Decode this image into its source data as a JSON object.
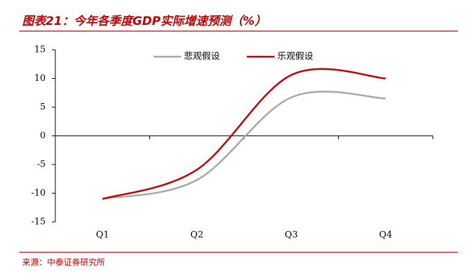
{
  "chart_data": {
    "type": "line",
    "title": "图表21：今年各季度GDP实际增速预测（%）",
    "source": "来源：中泰证券研究所",
    "categories": [
      "Q1",
      "Q2",
      "Q3",
      "Q4"
    ],
    "series": [
      {
        "name": "悲观假设",
        "color": "#a6a6a6",
        "values": [
          -11,
          -7.7,
          6.7,
          6.5
        ]
      },
      {
        "name": "乐观假设",
        "color": "#c00000",
        "values": [
          -11,
          -5.9,
          10.6,
          10
        ]
      }
    ],
    "ylim": [
      -15,
      15
    ],
    "yticks": [
      -15,
      -10,
      -5,
      0,
      5,
      10,
      15
    ],
    "legend": "top"
  }
}
